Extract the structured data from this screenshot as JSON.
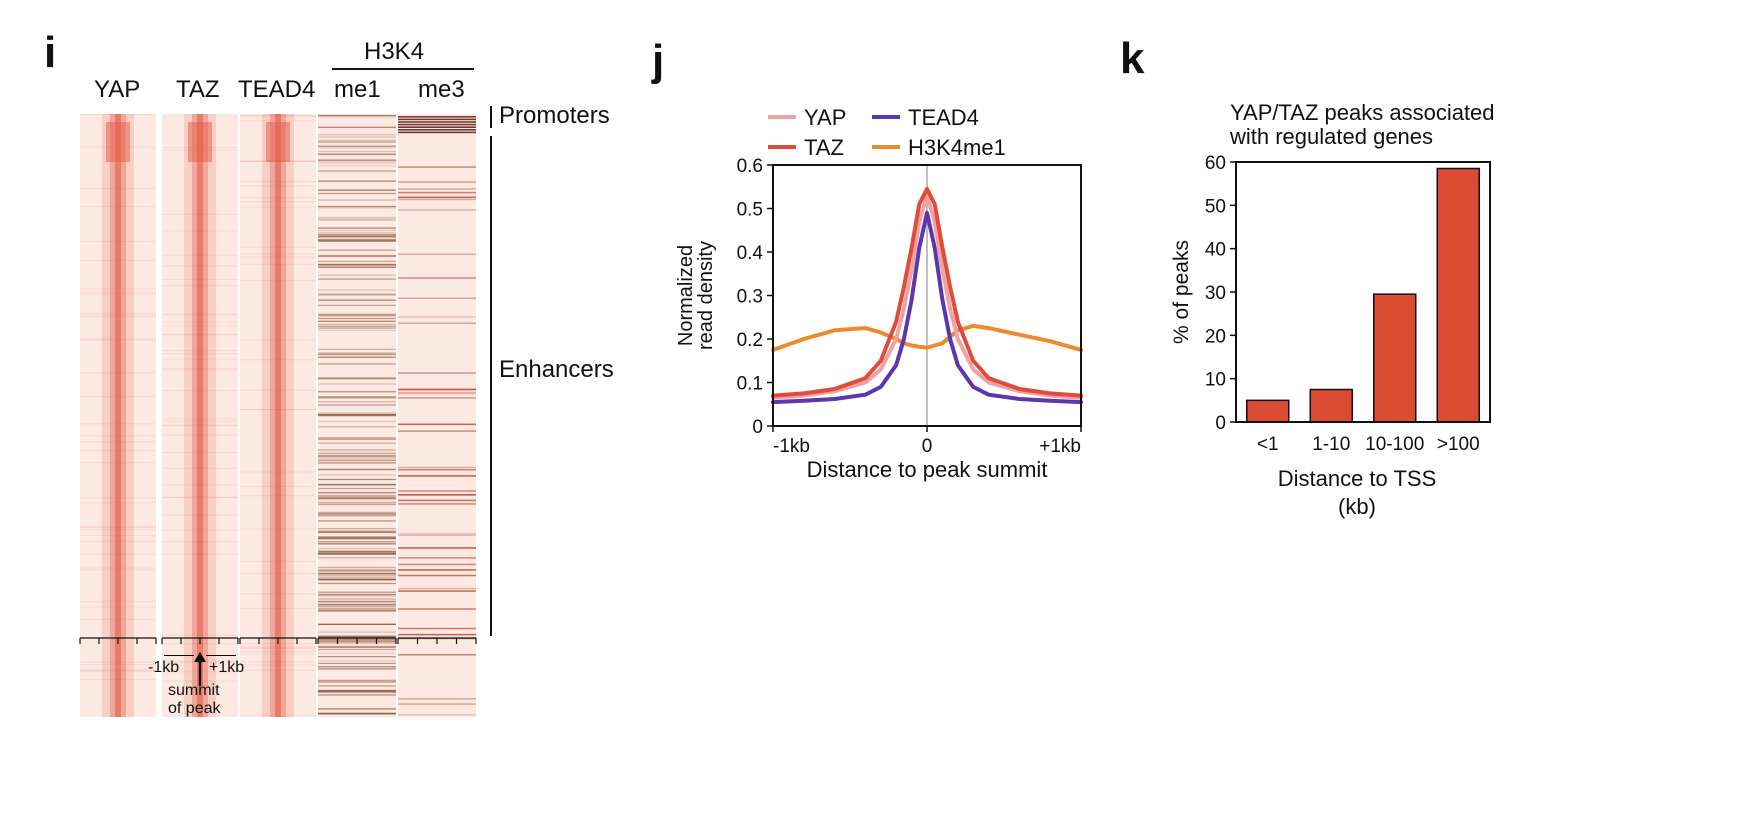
{
  "colors": {
    "yap": "#F0A2A2",
    "taz": "#E04B3A",
    "tead4": "#5B36B0",
    "h3k4me1": "#EE8A2E",
    "bar_fill": "#DB4B32",
    "heatmap_bg": "#FCE9E2",
    "heatmap_signal": "#E35A45",
    "me_line": "#7A3B1E",
    "axis": "#111111",
    "zero_line": "#AAAAAA"
  },
  "panel_i": {
    "label": "i",
    "group_header": "H3K4",
    "columns": [
      "YAP",
      "TAZ",
      "TEAD4",
      "me1",
      "me3"
    ],
    "regions": {
      "promoters": "Promoters",
      "enhancers": "Enhancers"
    },
    "axis_labels": {
      "left": "-1kb",
      "right": "+1kb",
      "summit_line1": "summit",
      "summit_line2": "of peak"
    },
    "arrow_icon": "up-arrow-icon"
  },
  "panel_j": {
    "label": "j"
  },
  "panel_k": {
    "label": "k"
  },
  "chart_data": [
    {
      "id": "j",
      "type": "line",
      "title": "",
      "xlabel": "Distance to peak summit",
      "ylabel": "Normalized read density",
      "ylabel_lines": [
        "Normalized",
        "read density"
      ],
      "x_tick_labels": [
        "-1kb",
        "0",
        "+1kb"
      ],
      "xlim": [
        -1000,
        1000
      ],
      "ylim": [
        0,
        0.6
      ],
      "yticks": [
        0,
        0.1,
        0.2,
        0.3,
        0.4,
        0.5,
        0.6
      ],
      "legend": [
        "YAP",
        "TEAD4",
        "TAZ",
        "H3K4me1"
      ],
      "legend_position": "top",
      "x": [
        -1000,
        -800,
        -600,
        -400,
        -300,
        -200,
        -150,
        -100,
        -50,
        0,
        50,
        100,
        150,
        200,
        300,
        400,
        600,
        800,
        1000
      ],
      "series": [
        {
          "name": "YAP",
          "color_key": "yap",
          "values": [
            0.065,
            0.07,
            0.08,
            0.1,
            0.13,
            0.2,
            0.27,
            0.36,
            0.47,
            0.53,
            0.47,
            0.36,
            0.27,
            0.2,
            0.13,
            0.1,
            0.08,
            0.07,
            0.065
          ]
        },
        {
          "name": "TEAD4",
          "color_key": "tead4",
          "values": [
            0.055,
            0.058,
            0.062,
            0.072,
            0.09,
            0.14,
            0.2,
            0.29,
            0.41,
            0.49,
            0.41,
            0.29,
            0.2,
            0.14,
            0.09,
            0.072,
            0.062,
            0.058,
            0.055
          ]
        },
        {
          "name": "TAZ",
          "color_key": "taz",
          "values": [
            0.07,
            0.075,
            0.085,
            0.11,
            0.15,
            0.24,
            0.32,
            0.41,
            0.51,
            0.545,
            0.51,
            0.41,
            0.32,
            0.24,
            0.15,
            0.11,
            0.085,
            0.075,
            0.07
          ]
        },
        {
          "name": "H3K4me1",
          "color_key": "h3k4me1",
          "values": [
            0.175,
            0.2,
            0.22,
            0.225,
            0.215,
            0.2,
            0.19,
            0.185,
            0.182,
            0.18,
            0.185,
            0.19,
            0.205,
            0.22,
            0.23,
            0.225,
            0.21,
            0.195,
            0.175
          ]
        }
      ]
    },
    {
      "id": "k",
      "type": "bar",
      "title": "YAP/TAZ peaks associated with regulated genes",
      "title_lines": [
        "YAP/TAZ peaks associated",
        "with regulated genes"
      ],
      "xlabel": "Distance to TSS (kb)",
      "xlabel_lines": [
        "Distance to TSS",
        "(kb)"
      ],
      "ylabel": "% of peaks",
      "categories": [
        "<1",
        "1-10",
        "10-100",
        ">100"
      ],
      "values": [
        5,
        7.5,
        29.5,
        58.5
      ],
      "ylim": [
        0,
        60
      ],
      "yticks": [
        0,
        10,
        20,
        30,
        40,
        50,
        60
      ]
    }
  ]
}
